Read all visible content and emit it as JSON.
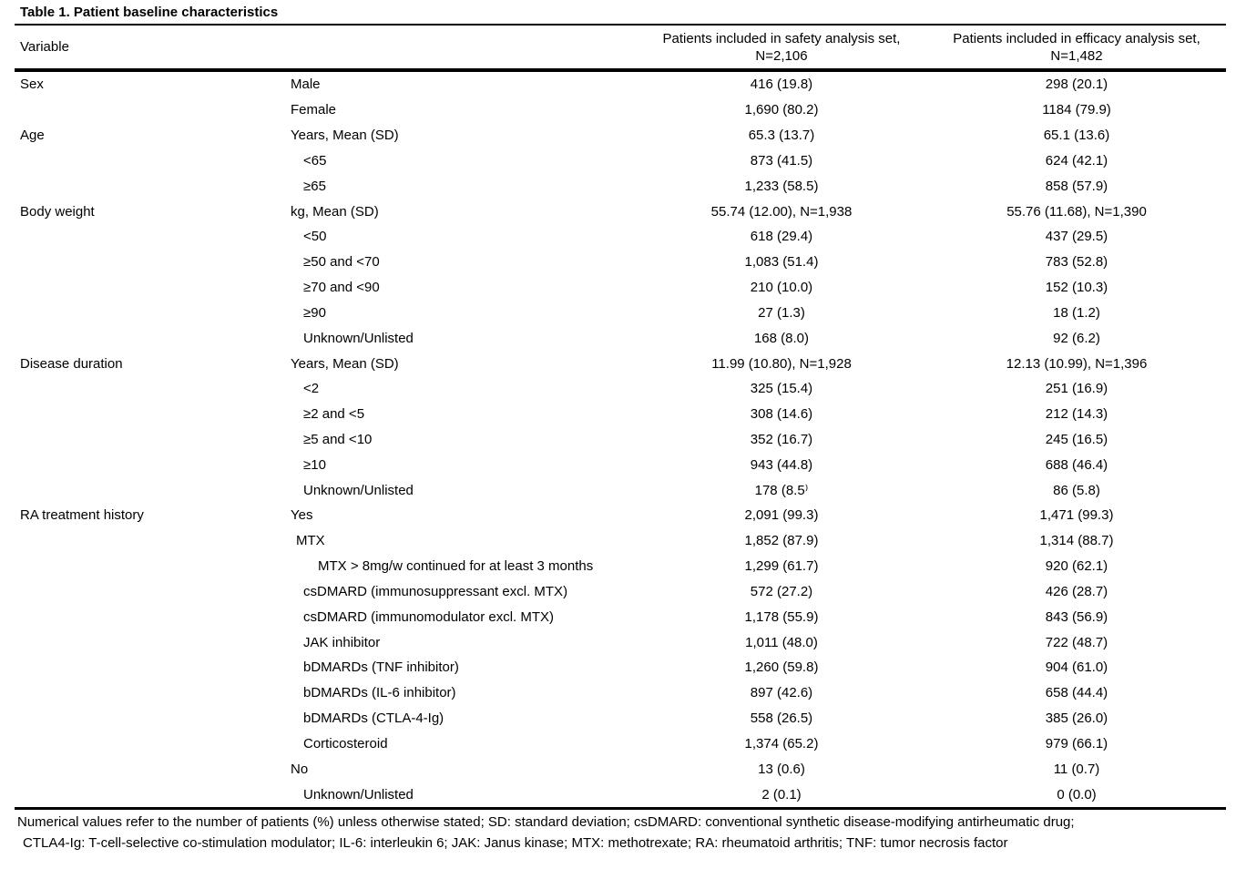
{
  "title": "Table 1. Patient baseline characteristics",
  "table": {
    "header": {
      "variable": "Variable",
      "safety_line1": "Patients included in safety analysis set,",
      "safety_line2": "N=2,106",
      "efficacy_line1": "Patients included in efficacy analysis set,",
      "efficacy_line2": "N=1,482"
    },
    "rows": [
      {
        "group": "Sex",
        "label": "Male",
        "indent": 0,
        "safety": "416 (19.8)",
        "efficacy": "298 (20.1)"
      },
      {
        "group": "",
        "label": "Female",
        "indent": 0,
        "safety": "1,690 (80.2)",
        "efficacy": "1184 (79.9)"
      },
      {
        "group": "Age",
        "label": "Years, Mean (SD)",
        "indent": 0,
        "safety": "65.3 (13.7)",
        "efficacy": "65.1 (13.6)"
      },
      {
        "group": "",
        "label": "<65",
        "indent": 2,
        "safety": "873 (41.5)",
        "efficacy": "624 (42.1)"
      },
      {
        "group": "",
        "label": "≥65",
        "indent": 2,
        "safety": "1,233 (58.5)",
        "efficacy": "858 (57.9)"
      },
      {
        "group": "Body weight",
        "label": "kg, Mean (SD)",
        "indent": 0,
        "safety": "55.74 (12.00), N=1,938",
        "efficacy": "55.76 (11.68), N=1,390"
      },
      {
        "group": "",
        "label": "<50",
        "indent": 2,
        "safety": "618 (29.4)",
        "efficacy": "437 (29.5)"
      },
      {
        "group": "",
        "label": "≥50 and <70",
        "indent": 2,
        "safety": "1,083 (51.4)",
        "efficacy": "783 (52.8)"
      },
      {
        "group": "",
        "label": "≥70 and <90",
        "indent": 2,
        "safety": "210 (10.0)",
        "efficacy": "152 (10.3)"
      },
      {
        "group": "",
        "label": "≥90",
        "indent": 2,
        "safety": "27 (1.3)",
        "efficacy": "18 (1.2)"
      },
      {
        "group": "",
        "label": "Unknown/Unlisted",
        "indent": 2,
        "safety": "168 (8.0)",
        "efficacy": "92 (6.2)"
      },
      {
        "group": "Disease duration",
        "label": "Years, Mean (SD)",
        "indent": 0,
        "safety": "11.99 (10.80), N=1,928",
        "efficacy": "12.13 (10.99), N=1,396"
      },
      {
        "group": "",
        "label": "<2",
        "indent": 2,
        "safety": "325 (15.4)",
        "efficacy": "251 (16.9)"
      },
      {
        "group": "",
        "label": "≥2 and <5",
        "indent": 2,
        "safety": "308 (14.6)",
        "efficacy": "212 (14.3)"
      },
      {
        "group": "",
        "label": "≥5 and <10",
        "indent": 2,
        "safety": "352 (16.7)",
        "efficacy": "245 (16.5)"
      },
      {
        "group": "",
        "label": "≥10",
        "indent": 2,
        "safety": "943 (44.8)",
        "efficacy": "688 (46.4)"
      },
      {
        "group": "",
        "label": "Unknown/Unlisted",
        "indent": 2,
        "safety": "178 (8.5⁾",
        "efficacy": "86 (5.8)"
      },
      {
        "group": "RA treatment history",
        "label": "Yes",
        "indent": 0,
        "safety": "2,091 (99.3)",
        "efficacy": "1,471 (99.3)"
      },
      {
        "group": "",
        "label": "MTX",
        "indent": 1,
        "safety": "1,852 (87.9)",
        "efficacy": "1,314 (88.7)"
      },
      {
        "group": "",
        "label": "MTX > 8mg/w continued for at least 3 months",
        "indent": 3,
        "safety": "1,299 (61.7)",
        "efficacy": "920 (62.1)"
      },
      {
        "group": "",
        "label": "csDMARD (immunosuppressant excl. MTX)",
        "indent": 2,
        "safety": "572 (27.2)",
        "efficacy": "426 (28.7)"
      },
      {
        "group": "",
        "label": "csDMARD (immunomodulator excl. MTX)",
        "indent": 2,
        "safety": "1,178 (55.9)",
        "efficacy": "843 (56.9)"
      },
      {
        "group": "",
        "label": "JAK inhibitor",
        "indent": 2,
        "safety": "1,011 (48.0)",
        "efficacy": "722 (48.7)"
      },
      {
        "group": "",
        "label": "bDMARDs (TNF inhibitor)",
        "indent": 2,
        "safety": "1,260 (59.8)",
        "efficacy": "904 (61.0)"
      },
      {
        "group": "",
        "label": "bDMARDs (IL-6 inhibitor)",
        "indent": 2,
        "safety": "897 (42.6)",
        "efficacy": "658 (44.4)"
      },
      {
        "group": "",
        "label": "bDMARDs (CTLA-4-Ig)",
        "indent": 2,
        "safety": "558 (26.5)",
        "efficacy": "385 (26.0)"
      },
      {
        "group": "",
        "label": "Corticosteroid",
        "indent": 2,
        "safety": "1,374 (65.2)",
        "efficacy": "979 (66.1)"
      },
      {
        "group": "",
        "label": "No",
        "indent": 0,
        "safety": "13 (0.6)",
        "efficacy": "11 (0.7)"
      },
      {
        "group": "",
        "label": "Unknown/Unlisted",
        "indent": 2,
        "safety": "2 (0.1)",
        "efficacy": "0 (0.0)"
      }
    ]
  },
  "footnote": {
    "line1": "Numerical values refer to the number of patients (%) unless otherwise stated; SD: standard deviation; csDMARD: conventional synthetic disease-modifying antirheumatic drug;",
    "line2": "CTLA4-Ig: T-cell-selective co-stimulation modulator; IL-6: interleukin 6; JAK: Janus kinase; MTX: methotrexate; RA: rheumatoid arthritis; TNF: tumor necrosis factor"
  }
}
